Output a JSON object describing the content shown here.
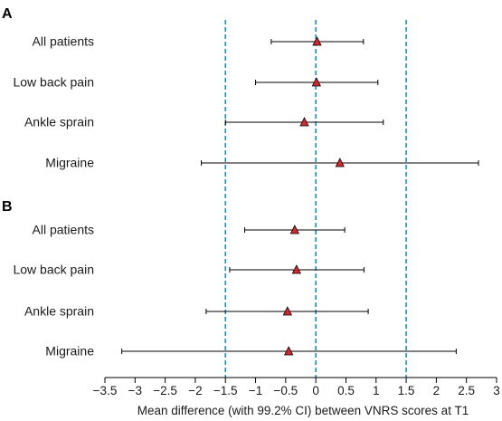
{
  "chart_data": {
    "type": "forest",
    "xlabel": "Mean difference (with 99.2% CI) between VNRS scores at T1",
    "xlim": [
      -3.5,
      3
    ],
    "xticks": [
      "−3.5",
      "−3",
      "−2.5",
      "−2",
      "−1.5",
      "−1",
      "−0.5",
      "0",
      "0.5",
      "1",
      "1.5",
      "2",
      "2.5",
      "3"
    ],
    "reference_lines": [
      -1.5,
      0,
      1.5
    ],
    "colors": {
      "marker": "#d7262b",
      "reference_line": "#1a8fc8",
      "ci": "#000000"
    },
    "panels": [
      {
        "label": "A",
        "rows": [
          {
            "name": "All patients",
            "estimate": 0.02,
            "lower": -0.74,
            "upper": 0.79
          },
          {
            "name": "Low back pain",
            "estimate": 0.01,
            "lower": -1.0,
            "upper": 1.03
          },
          {
            "name": "Ankle sprain",
            "estimate": -0.19,
            "lower": -1.5,
            "upper": 1.12
          },
          {
            "name": "Migraine",
            "estimate": 0.4,
            "lower": -1.9,
            "upper": 2.7
          }
        ]
      },
      {
        "label": "B",
        "rows": [
          {
            "name": "All patients",
            "estimate": -0.35,
            "lower": -1.18,
            "upper": 0.48
          },
          {
            "name": "Low back pain",
            "estimate": -0.32,
            "lower": -1.43,
            "upper": 0.8
          },
          {
            "name": "Ankle sprain",
            "estimate": -0.47,
            "lower": -1.82,
            "upper": 0.87
          },
          {
            "name": "Migraine",
            "estimate": -0.45,
            "lower": -3.22,
            "upper": 2.33
          }
        ]
      }
    ]
  }
}
